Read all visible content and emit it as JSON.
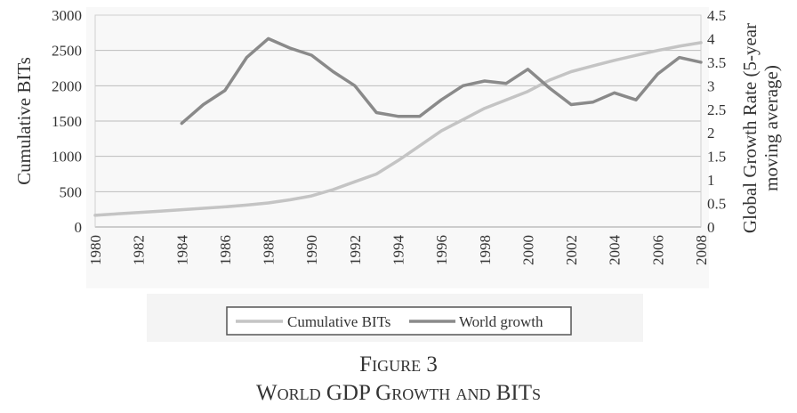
{
  "caption": {
    "figure_label": "Figure 3",
    "figure_title": "World GDP Growth and BITs"
  },
  "chart_data": {
    "type": "line",
    "ylabel": "Cumulative BITs",
    "y2label_line1": "Global Growth Rate (5-year",
    "y2label_line2": "moving average)",
    "xlim": [
      1980,
      2008
    ],
    "ylim": [
      0,
      3000
    ],
    "y2lim": [
      0,
      4.5
    ],
    "grid": true,
    "legend_position": "bottom",
    "x_ticks": [
      "1980",
      "1982",
      "1984",
      "1986",
      "1988",
      "1990",
      "1992",
      "1994",
      "1996",
      "1998",
      "2000",
      "2002",
      "2004",
      "2006",
      "2008"
    ],
    "y_ticks": [
      "0",
      "500",
      "1000",
      "1500",
      "2000",
      "2500",
      "3000"
    ],
    "y2_ticks": [
      "0",
      "0.5",
      "1",
      "1.5",
      "2",
      "2.5",
      "3",
      "3.5",
      "4",
      "4.5"
    ],
    "series": [
      {
        "name": "Cumulative BITs",
        "axis": "left",
        "color": "#c4c4c4",
        "x": [
          1980,
          1981,
          1982,
          1983,
          1984,
          1985,
          1986,
          1987,
          1988,
          1989,
          1990,
          1991,
          1992,
          1993,
          1994,
          1995,
          1996,
          1997,
          1998,
          1999,
          2000,
          2001,
          2002,
          2003,
          2004,
          2005,
          2006,
          2007,
          2008
        ],
        "y": [
          165,
          185,
          205,
          225,
          245,
          265,
          285,
          310,
          340,
          385,
          440,
          530,
          640,
          750,
          940,
          1150,
          1360,
          1520,
          1680,
          1800,
          1920,
          2080,
          2200,
          2280,
          2360,
          2430,
          2500,
          2560,
          2610
        ]
      },
      {
        "name": "World growth",
        "axis": "right",
        "color": "#8a8a8a",
        "x": [
          1984,
          1985,
          1986,
          1987,
          1988,
          1989,
          1990,
          1991,
          1992,
          1993,
          1994,
          1995,
          1996,
          1997,
          1998,
          1999,
          2000,
          2001,
          2002,
          2003,
          2004,
          2005,
          2006,
          2007,
          2008
        ],
        "y": [
          2.2,
          2.6,
          2.9,
          3.6,
          4.0,
          3.8,
          3.65,
          3.3,
          3.0,
          2.43,
          2.35,
          2.35,
          2.7,
          3.0,
          3.1,
          3.05,
          3.35,
          2.95,
          2.6,
          2.65,
          2.85,
          2.7,
          3.25,
          3.6,
          3.5
        ]
      }
    ]
  }
}
